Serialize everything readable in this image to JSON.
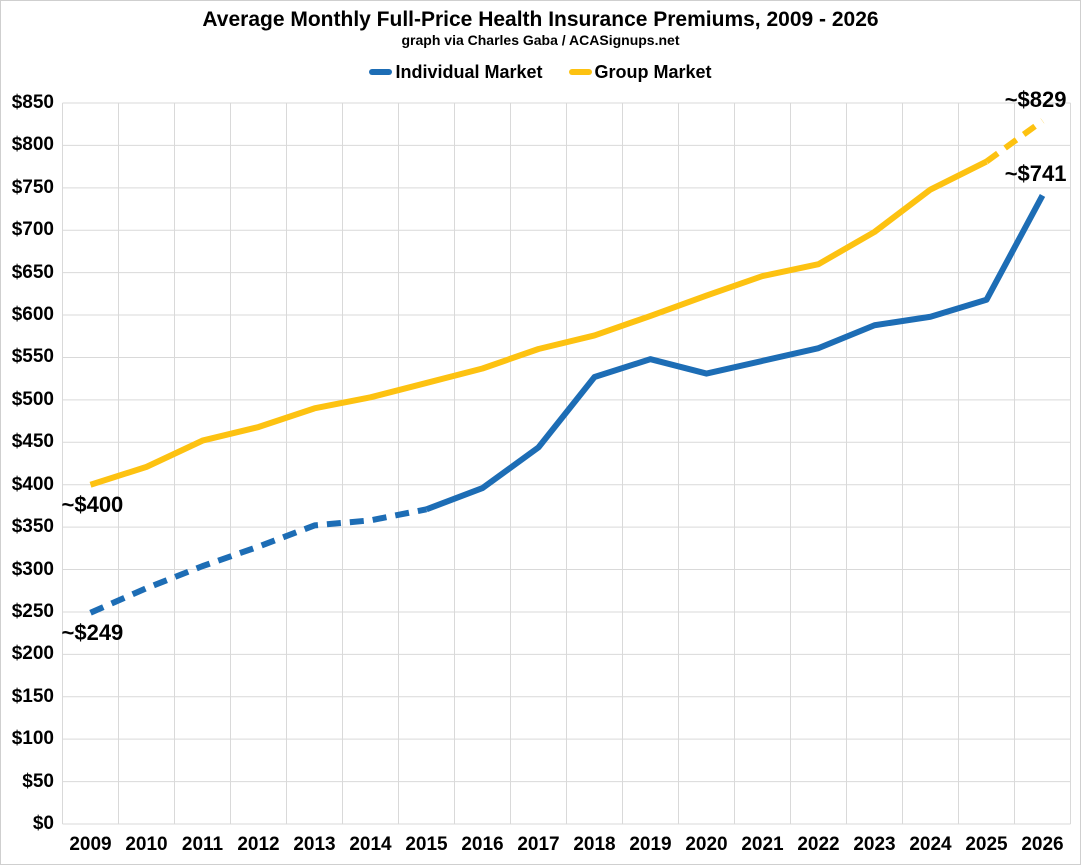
{
  "chart_data": {
    "type": "line",
    "title": "Average Monthly Full-Price Health Insurance Premiums, 2009 - 2026",
    "subtitle": "graph via Charles Gaba / ACASignups.net",
    "x": [
      2009,
      2010,
      2011,
      2012,
      2013,
      2014,
      2015,
      2016,
      2017,
      2018,
      2019,
      2020,
      2021,
      2022,
      2023,
      2024,
      2025,
      2026
    ],
    "series": [
      {
        "name": "Individual Market",
        "color": "#1d6db5",
        "values": [
          249,
          278,
          304,
          327,
          352,
          358,
          371,
          396,
          444,
          527,
          548,
          531,
          546,
          561,
          588,
          598,
          618,
          741
        ],
        "segments": [
          {
            "from": 2009,
            "to": 2015,
            "style": "dashed",
            "note": "estimated"
          },
          {
            "from": 2015,
            "to": 2026,
            "style": "solid",
            "note": "actual"
          }
        ]
      },
      {
        "name": "Group Market",
        "color": "#fdc211",
        "values": [
          400,
          421,
          452,
          468,
          490,
          503,
          520,
          537,
          560,
          576,
          599,
          623,
          646,
          660,
          698,
          748,
          781,
          829
        ],
        "segments": [
          {
            "from": 2009,
            "to": 2025,
            "style": "solid",
            "note": "actual"
          },
          {
            "from": 2025,
            "to": 2026,
            "style": "dashed",
            "note": "projected"
          }
        ]
      }
    ],
    "ylim": [
      0,
      850
    ],
    "ytick_step": 50,
    "ytick_prefix": "$",
    "grid": true,
    "legend_position": "top",
    "annotations": [
      {
        "label": "~$400",
        "year": 2009,
        "value": 400,
        "series": "Group Market",
        "position": "below-start"
      },
      {
        "label": "~$249",
        "year": 2009,
        "value": 249,
        "series": "Individual Market",
        "position": "below-start"
      },
      {
        "label": "~$829",
        "year": 2026,
        "value": 829,
        "series": "Group Market",
        "position": "above-end"
      },
      {
        "label": "~$741",
        "year": 2026,
        "value": 741,
        "series": "Individual Market",
        "position": "above-end"
      }
    ]
  },
  "colors": {
    "grid": "#d9d9d9",
    "text": "#000000",
    "background": "#ffffff",
    "individual_market": "#1d6db5",
    "group_market": "#fdc211"
  }
}
